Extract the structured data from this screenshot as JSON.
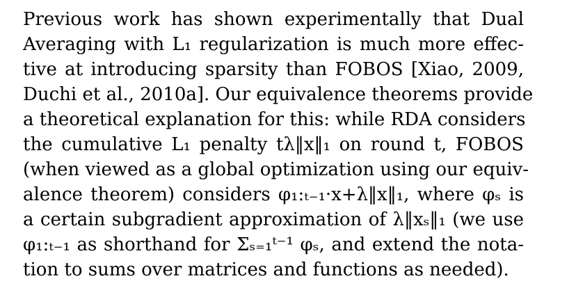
{
  "paragraph": {
    "lines": [
      "Previous work has shown experimentally that Dual",
      "Averaging with L₁ regularization is much more effec-",
      "tive at introducing sparsity than FOBOS [Xiao, 2009,",
      "Duchi et al., 2010a]. Our equivalence theorems provide",
      "a theoretical explanation for this: while RDA considers",
      "the cumulative L₁ penalty tλ‖x‖₁ on round t, FOBOS",
      "(when viewed as a global optimization using our equiv-",
      "alence theorem) considers φ₁:ₜ₋₁·x+λ‖x‖₁, where φₛ is",
      "a certain subgradient approximation of λ‖xₛ‖₁ (we use",
      "φ₁:ₜ₋₁ as shorthand for Σₛ₌₁ᵗ⁻¹ φₛ, and extend the nota-",
      "tion to sums over matrices and functions as needed)."
    ]
  }
}
